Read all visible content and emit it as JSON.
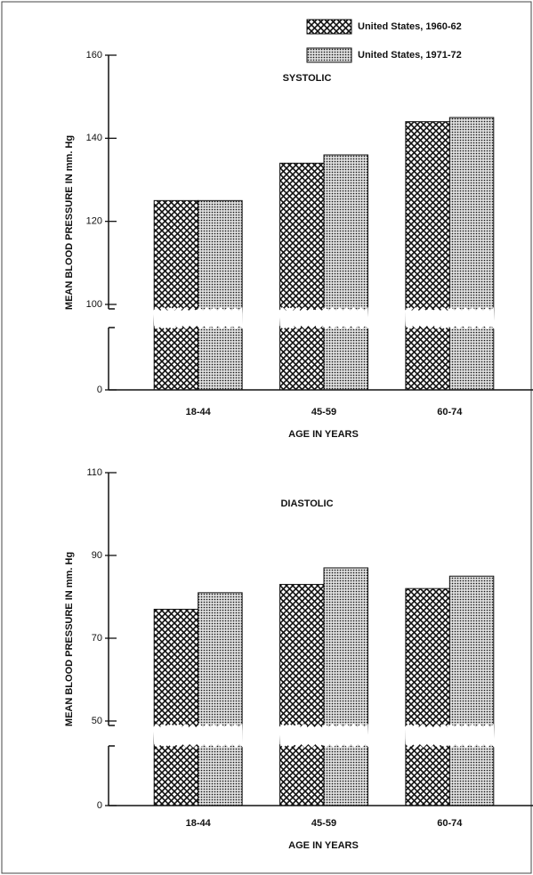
{
  "chart_data": [
    {
      "type": "bar",
      "subtitle": "SYSTOLIC",
      "ylabel": "MEAN BLOOD PRESSURE IN mm. Hg",
      "xlabel": "AGE IN YEARS",
      "categories": [
        "18-44",
        "45-59",
        "60-74"
      ],
      "series": [
        {
          "name": "United States, 1960-62",
          "color": "#111111",
          "pattern": "crosshatch",
          "values": [
            125,
            134,
            144
          ]
        },
        {
          "name": "United States, 1971-72",
          "color": "#111111",
          "pattern": "dots",
          "values": [
            125,
            136,
            145
          ]
        }
      ],
      "ylim": [
        0,
        160
      ],
      "yticks": [
        0,
        100,
        120,
        140,
        160
      ],
      "axis_break": true,
      "legend": "upper right"
    },
    {
      "type": "bar",
      "subtitle": "DIASTOLIC",
      "ylabel": "MEAN BLOOD PRESSURE IN mm. Hg",
      "xlabel": "AGE IN YEARS",
      "categories": [
        "18-44",
        "45-59",
        "60-74"
      ],
      "series": [
        {
          "color": "#111111",
          "pattern": "crosshatch",
          "values": [
            77,
            83,
            82
          ]
        },
        {
          "color": "#111111",
          "pattern": "dots",
          "values": [
            81,
            87,
            85
          ]
        }
      ],
      "ylim": [
        0,
        110
      ],
      "yticks": [
        0,
        50,
        70,
        90,
        110
      ],
      "axis_break": true
    }
  ]
}
